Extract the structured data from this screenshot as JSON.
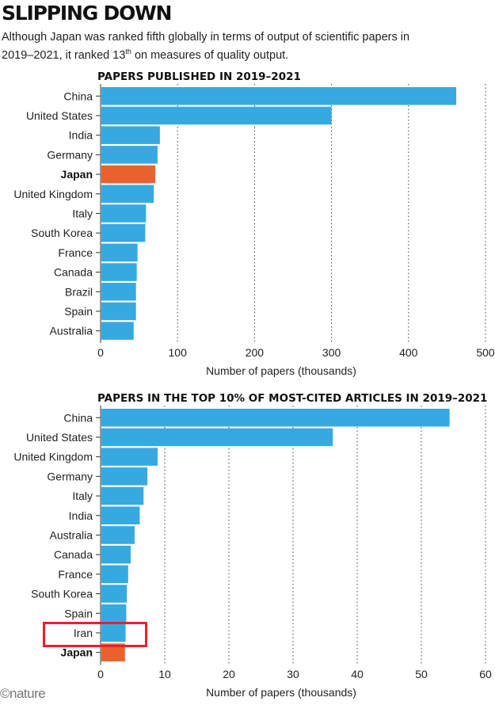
{
  "header": {
    "title": "SLIPPING DOWN",
    "subtitle_part1": "Although Japan was ranked fifth globally in terms of output of scientific papers in 2019–2021, it ranked 13",
    "subtitle_sup": "th",
    "subtitle_part2": " on measures of quality output."
  },
  "footer": {
    "logo_text": "©nature"
  },
  "colors": {
    "bar": "#36a9e1",
    "highlight_bar": "#e8632c",
    "highlight_box": "#e8202e"
  },
  "chart_data": [
    {
      "type": "bar",
      "orientation": "horizontal",
      "title": "PAPERS PUBLISHED IN 2019–2021",
      "xlabel": "Number of papers (thousands)",
      "xlim": [
        0,
        500
      ],
      "ticks": [
        0,
        100,
        200,
        300,
        400,
        500
      ],
      "grid": "vertical dotted",
      "highlight": [
        "Japan"
      ],
      "categories": [
        "China",
        "United States",
        "India",
        "Germany",
        "Japan",
        "United Kingdom",
        "Italy",
        "South Korea",
        "France",
        "Canada",
        "Brazil",
        "Spain",
        "Australia"
      ],
      "values": [
        462,
        300,
        77,
        74,
        71,
        69,
        59,
        58,
        48,
        47,
        46,
        46,
        43
      ]
    },
    {
      "type": "bar",
      "orientation": "horizontal",
      "title": "PAPERS IN THE TOP 10% OF MOST-CITED ARTICLES IN 2019–2021",
      "xlabel": "Number of papers (thousands)",
      "xlim": [
        0,
        60
      ],
      "ticks": [
        0,
        10,
        20,
        30,
        40,
        50,
        60
      ],
      "grid": "vertical dotted",
      "highlight": [
        "Japan"
      ],
      "boxed": [
        "Iran"
      ],
      "categories": [
        "China",
        "United States",
        "United Kingdom",
        "Germany",
        "Italy",
        "India",
        "Australia",
        "Canada",
        "France",
        "South Korea",
        "Spain",
        "Iran",
        "Japan"
      ],
      "values": [
        54.4,
        36.2,
        8.9,
        7.3,
        6.7,
        6.1,
        5.3,
        4.7,
        4.3,
        4.1,
        4.0,
        3.9,
        3.8
      ]
    }
  ]
}
